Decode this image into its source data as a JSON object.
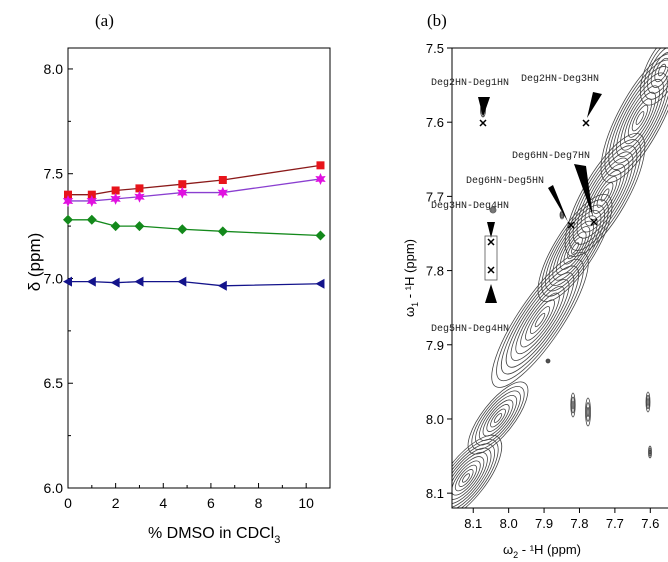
{
  "panel_labels": {
    "a": "(a)",
    "b": "(b)"
  },
  "chart_data": [
    {
      "type": "line",
      "panel": "(a)",
      "xlabel_main": "% DMSO in CDCl",
      "xlabel_sub": "3",
      "ylabel": "δ (ppm)",
      "xlim": [
        0,
        11
      ],
      "ylim": [
        6.0,
        8.1
      ],
      "x_ticks": [
        0,
        2,
        4,
        6,
        8,
        10
      ],
      "y_ticks": [
        "6.0",
        "6.5",
        "7.0",
        "7.5",
        "8.0"
      ],
      "x": [
        0,
        1,
        2,
        3,
        4.8,
        6.5,
        10.6
      ],
      "series": [
        {
          "color": "#e8141b",
          "line_color": "#8b1a1a",
          "marker": "square",
          "values": [
            7.4,
            7.4,
            7.42,
            7.43,
            7.45,
            7.47,
            7.54
          ]
        },
        {
          "color": "#e010e0",
          "line_color": "#8a3fd0",
          "marker": "star",
          "values": [
            7.37,
            7.37,
            7.38,
            7.39,
            7.41,
            7.41,
            7.475
          ]
        },
        {
          "color": "#13891b",
          "line_color": "#13891b",
          "marker": "diamond",
          "values": [
            7.28,
            7.28,
            7.25,
            7.25,
            7.235,
            7.225,
            7.205
          ]
        },
        {
          "color": "#13138b",
          "line_color": "#13138b",
          "marker": "triangle-left",
          "values": [
            6.985,
            6.985,
            6.98,
            6.985,
            6.985,
            6.965,
            6.975
          ]
        }
      ]
    },
    {
      "type": "other",
      "panel": "(b)",
      "xlabel_main": "ω",
      "xlabel_sub": "2",
      "xlabel_rest": " - ¹H  (ppm)",
      "ylabel_main": "ω",
      "ylabel_sub": "1",
      "ylabel_rest": " - ¹H  (ppm)",
      "x_ticks": [
        "8.1",
        "8.0",
        "7.9",
        "7.8",
        "7.7",
        "7.6"
      ],
      "y_ticks": [
        "7.5",
        "7.6",
        "7.7",
        "7.8",
        "7.9",
        "8.0",
        "8.1"
      ],
      "xlim": [
        8.16,
        7.55
      ],
      "ylim": [
        7.5,
        8.12
      ],
      "annotations": [
        {
          "label": "Deg2HN-Deg1HN"
        },
        {
          "label": "Deg2HN-Deg3HN"
        },
        {
          "label": "Deg6HN-Deg7HN"
        },
        {
          "label": "Deg6HN-Deg5HN"
        },
        {
          "label": "Deg3HN-Deg4HN"
        },
        {
          "label": "Deg5HN-Deg4HN"
        }
      ]
    }
  ]
}
